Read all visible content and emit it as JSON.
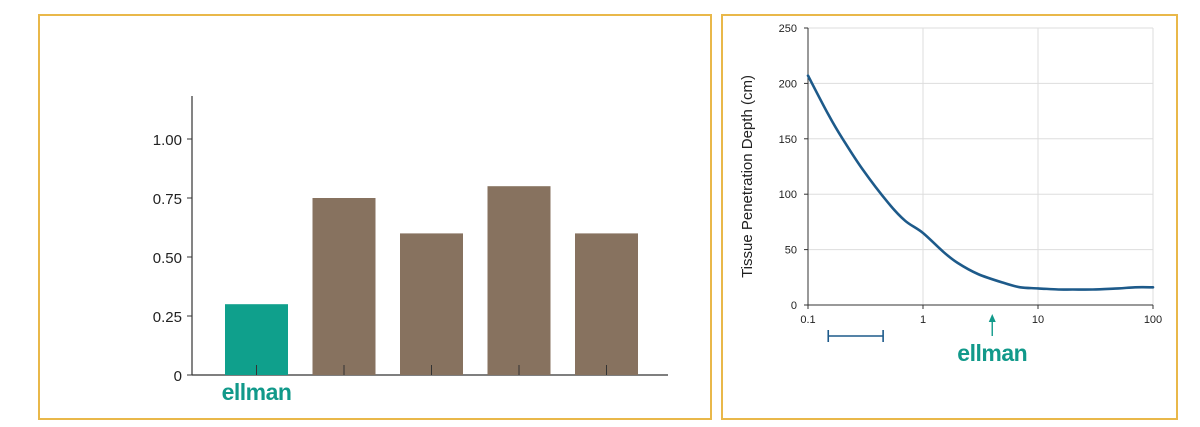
{
  "colors": {
    "border": "#e9b84a",
    "brand": "#11998a",
    "bar_highlight": "#0fa08c",
    "bar_default": "#87725f",
    "curve": "#1d5a8a",
    "grid": "#dddddd",
    "axis": "#333333"
  },
  "chart_data": [
    {
      "type": "bar",
      "title": "",
      "xlabel": "",
      "ylabel": "",
      "categories": [
        "ellman",
        "",
        "",
        "",
        ""
      ],
      "values": [
        0.3,
        0.75,
        0.6,
        0.8,
        0.6
      ],
      "highlight_index": 0,
      "ylim": [
        0,
        1.2
      ],
      "yticks": [
        0,
        0.25,
        0.5,
        0.75,
        1.0
      ],
      "ytick_labels": [
        "0",
        "0.25",
        "0.50",
        "0.75",
        "1.00"
      ],
      "grid": false
    },
    {
      "type": "line",
      "title": "",
      "xlabel": "",
      "ylabel": "Tissue Penetration Depth (cm)",
      "xscale": "log",
      "xlim": [
        0.1,
        100
      ],
      "ylim": [
        0,
        250
      ],
      "xticks": [
        0.1,
        1,
        10,
        100
      ],
      "xtick_labels": [
        "0.1",
        "1",
        "10",
        "100"
      ],
      "yticks": [
        0,
        50,
        100,
        150,
        200,
        250
      ],
      "ytick_labels": [
        "0",
        "50",
        "100",
        "150",
        "200",
        "250"
      ],
      "grid": true,
      "series": [
        {
          "x": [
            0.1,
            0.15,
            0.2,
            0.3,
            0.5,
            0.7,
            1,
            1.5,
            2,
            3,
            5,
            7,
            10,
            15,
            20,
            30,
            50,
            70,
            100
          ],
          "y": [
            207,
            172,
            150,
            122,
            92,
            76,
            65,
            48,
            38,
            28,
            20,
            16,
            15,
            14,
            14,
            14,
            15,
            16,
            16
          ]
        }
      ],
      "annotations": {
        "range_bar": [
          0.15,
          0.45
        ],
        "arrow_x": 4,
        "brand_label": "ellman"
      }
    }
  ]
}
